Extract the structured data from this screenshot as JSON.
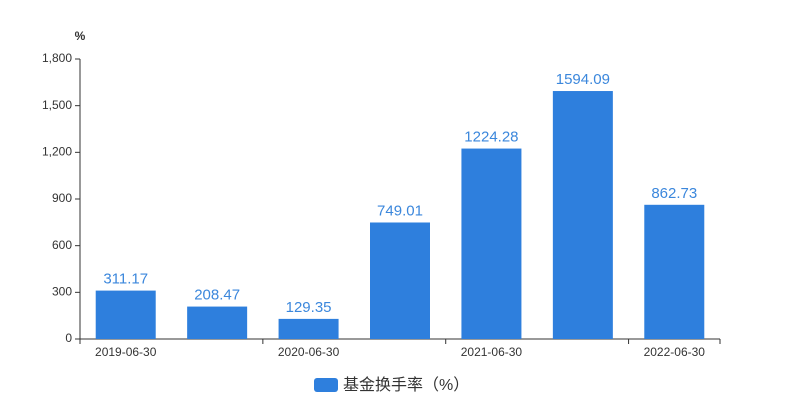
{
  "chart_data": {
    "type": "bar",
    "y_unit": "%",
    "categories": [
      "2019-06-30",
      null,
      "2020-06-30",
      null,
      "2021-06-30",
      null,
      "2022-06-30"
    ],
    "series": [
      {
        "name": "基金换手率（%）",
        "color": "#2e7fdd",
        "values": [
          311.17,
          208.47,
          129.35,
          749.01,
          1224.28,
          1594.09,
          862.73
        ]
      }
    ],
    "ylim": [
      0,
      1800
    ],
    "yticks": [
      0,
      300,
      600,
      900,
      {
        "value": 1200,
        "label": "1,200"
      },
      {
        "value": 1500,
        "label": "1,500"
      },
      {
        "value": 1800,
        "label": "1,800"
      }
    ],
    "grid": false,
    "legend": "bottom"
  }
}
